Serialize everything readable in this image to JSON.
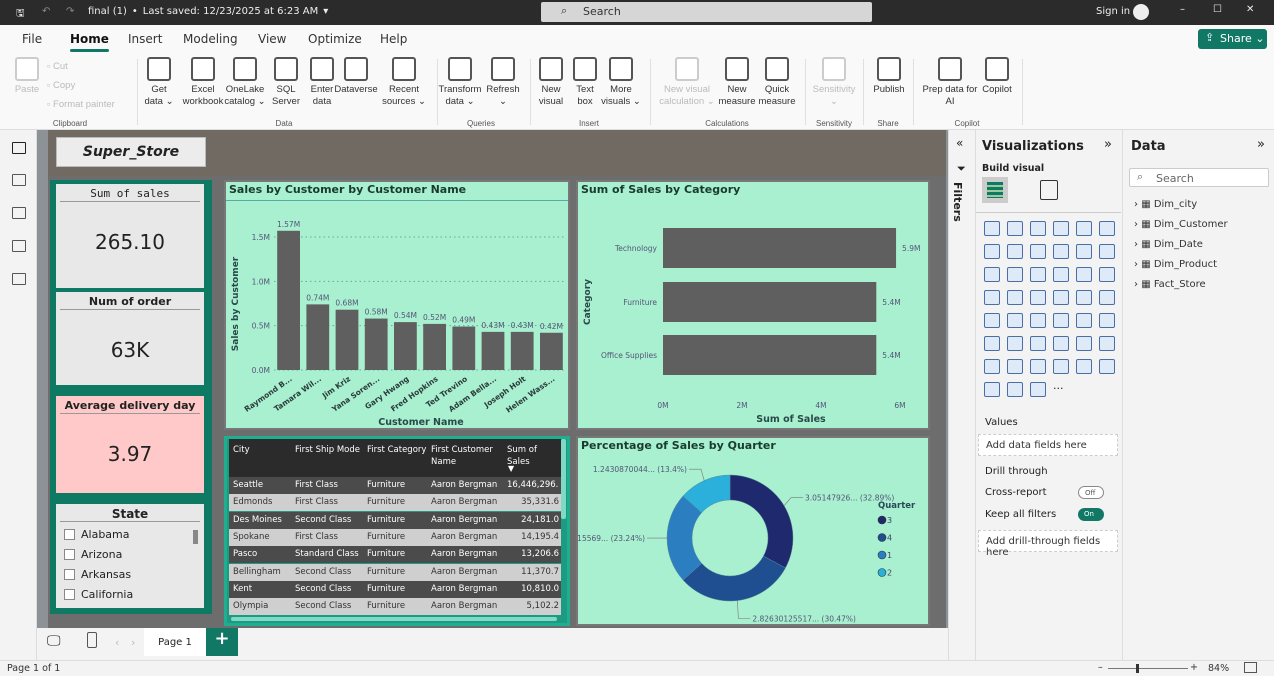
{
  "titlebar": {
    "filename": "final (1)",
    "saved": "Last saved: 12/23/2025 at 6:23 AM",
    "search": "Search",
    "signin": "Sign in"
  },
  "tabs": [
    "File",
    "Home",
    "Insert",
    "Modeling",
    "View",
    "Optimize",
    "Help"
  ],
  "active_tab": "Home",
  "share": "Share",
  "ribbon": {
    "groups": [
      {
        "label": "Clipboard",
        "buttons": [
          {
            "label": "Paste",
            "icon": "paste-icon",
            "disabled": true
          },
          {
            "label": "Cut",
            "icon": "cut-icon",
            "disabled": true
          },
          {
            "label": "Copy",
            "icon": "copy-icon",
            "disabled": true
          },
          {
            "label": "Format painter",
            "icon": "format-painter-icon",
            "disabled": true
          }
        ]
      },
      {
        "label": "Data",
        "buttons": [
          {
            "label": "Get data ⌄",
            "icon": "database-icon"
          },
          {
            "label": "Excel workbook",
            "icon": "excel-icon"
          },
          {
            "label": "OneLake catalog ⌄",
            "icon": "onelake-icon"
          },
          {
            "label": "SQL Server",
            "icon": "sql-server-icon"
          },
          {
            "label": "Enter data",
            "icon": "table-add-icon"
          },
          {
            "label": "Dataverse",
            "icon": "dataverse-icon"
          },
          {
            "label": "Recent sources ⌄",
            "icon": "recent-icon"
          }
        ]
      },
      {
        "label": "Queries",
        "buttons": [
          {
            "label": "Transform data ⌄",
            "icon": "transform-icon"
          },
          {
            "label": "Refresh ⌄",
            "icon": "refresh-icon"
          }
        ]
      },
      {
        "label": "Insert",
        "buttons": [
          {
            "label": "New visual",
            "icon": "new-visual-icon"
          },
          {
            "label": "Text box",
            "icon": "text-box-icon"
          },
          {
            "label": "More visuals ⌄",
            "icon": "more-visuals-icon"
          }
        ]
      },
      {
        "label": "Calculations",
        "buttons": [
          {
            "label": "New visual calculation ⌄",
            "icon": "visual-calc-icon",
            "disabled": true
          },
          {
            "label": "New measure",
            "icon": "calculator-icon"
          },
          {
            "label": "Quick measure",
            "icon": "quick-measure-icon"
          }
        ]
      },
      {
        "label": "Sensitivity",
        "buttons": [
          {
            "label": "Sensitivity ⌄",
            "icon": "sensitivity-icon",
            "disabled": true
          }
        ]
      },
      {
        "label": "Share",
        "buttons": [
          {
            "label": "Publish",
            "icon": "publish-icon"
          }
        ]
      },
      {
        "label": "Copilot",
        "buttons": [
          {
            "label": "Prep data for AI",
            "icon": "prep-data-icon"
          },
          {
            "label": "Copilot",
            "icon": "copilot-icon"
          }
        ]
      }
    ]
  },
  "report": {
    "logo": "Super_Store",
    "kpis": [
      {
        "title": "Sum of sales",
        "value": "265.10",
        "color": "#e8e8e8"
      },
      {
        "title": "Num of order",
        "value": "63K",
        "color": "#e8e8e8"
      },
      {
        "title": "Average delivery day",
        "value": "3.97",
        "color": "#ffc9c9"
      }
    ],
    "slicer": {
      "title": "State",
      "items": [
        "Alabama",
        "Arizona",
        "Arkansas",
        "California"
      ]
    },
    "table": {
      "columns": [
        "City",
        "First Ship Mode",
        "First Category",
        "First Customer Name",
        "Sum of Sales"
      ],
      "rows": [
        [
          "Seattle",
          "First Class",
          "Furniture",
          "Aaron Bergman",
          "16,446,296.5"
        ],
        [
          "Edmonds",
          "First Class",
          "Furniture",
          "Aaron Bergman",
          "35,331.6"
        ],
        [
          "Des Moines",
          "Second Class",
          "Furniture",
          "Aaron Bergman",
          "24,181.0"
        ],
        [
          "Spokane",
          "First Class",
          "Furniture",
          "Aaron Bergman",
          "14,195.4"
        ],
        [
          "Pasco",
          "Standard Class",
          "Furniture",
          "Aaron Bergman",
          "13,206.6"
        ],
        [
          "Bellingham",
          "Second Class",
          "Furniture",
          "Aaron Bergman",
          "11,370.7"
        ],
        [
          "Kent",
          "Second Class",
          "Furniture",
          "Aaron Bergman",
          "10,810.0"
        ],
        [
          "Olympia",
          "Second Class",
          "Furniture",
          "Aaron Bergman",
          "5,102.2"
        ]
      ]
    }
  },
  "chart_data": [
    {
      "type": "bar",
      "title": "Sales by Customer by Customer Name",
      "xlabel": "Customer Name",
      "ylabel": "Sales by Customer",
      "categories": [
        "Raymond B...",
        "Tamara Wil...",
        "Jim Kriz",
        "Yana Soren...",
        "Gary Hwang",
        "Fred Hopkins",
        "Ted Trevino",
        "Adam Bella...",
        "Joseph Holt",
        "Helen Wass..."
      ],
      "values": [
        1.57,
        0.74,
        0.68,
        0.58,
        0.54,
        0.52,
        0.49,
        0.43,
        0.43,
        0.42
      ],
      "data_labels": [
        "1.57M",
        "0.74M",
        "0.68M",
        "0.58M",
        "0.54M",
        "0.52M",
        "0.49M",
        "0.43M",
        "0.43M",
        "0.42M"
      ],
      "yticks": [
        "0.0M",
        "0.5M",
        "1.0M",
        "1.5M"
      ],
      "unit": "M",
      "ylim": [
        0,
        1.75
      ],
      "grid": true,
      "color": "#5f5f5f"
    },
    {
      "type": "bar",
      "orientation": "horizontal",
      "title": "Sum of Sales by Category",
      "xlabel": "Sum of Sales",
      "ylabel": "Category",
      "categories": [
        "Technology",
        "Furniture",
        "Office Supplies"
      ],
      "values": [
        5.9,
        5.4,
        5.4
      ],
      "data_labels": [
        "5.9M",
        "5.4M",
        "5.4M"
      ],
      "xticks": [
        "0M",
        "2M",
        "4M",
        "6M"
      ],
      "xlim": [
        0,
        6
      ],
      "color": "#5f5f5f"
    },
    {
      "type": "pie",
      "variant": "donut",
      "title": "Percentage of Sales by Quarter",
      "legend_title": "Quarter",
      "legend": "right",
      "slices": [
        {
          "name": "3",
          "label": "3.05147926... (32.89%)",
          "percent": 32.89,
          "color": "#1f2a6e"
        },
        {
          "name": "4",
          "label": "2.82630125517... (30.47%)",
          "percent": 30.47,
          "color": "#1f4e91"
        },
        {
          "name": "1",
          "label": "2.15569... (23.24%)",
          "percent": 23.24,
          "color": "#2b7fc0"
        },
        {
          "name": "2",
          "label": "1.2430870044... (13.4%)",
          "percent": 13.4,
          "color": "#2bb0dc"
        }
      ]
    }
  ],
  "visualizations": {
    "title": "Visualizations",
    "build": "Build visual",
    "values_label": "Values",
    "values_well": "Add data fields here",
    "drill": "Drill through",
    "cross": "Cross-report",
    "cross_state": "Off",
    "keep": "Keep all filters",
    "keep_state": "On",
    "drill_well": "Add drill-through fields here",
    "icons": [
      "stacked-bar",
      "stacked-column",
      "clustered-bar",
      "clustered-column",
      "100-bar",
      "100-column",
      "line",
      "area",
      "stacked-area",
      "100-area",
      "line-column",
      "line-clustered",
      "ribbon",
      "waterfall",
      "funnel",
      "scatter",
      "pie",
      "donut",
      "treemap",
      "map",
      "filled-map",
      "azure-map",
      "gauge",
      "card-new",
      "card",
      "multi-row-card",
      "kpi",
      "slicer",
      "table",
      "matrix",
      "r-visual",
      "python-visual",
      "key-influencers",
      "decomposition-tree",
      "qa",
      "narrative",
      "metrics",
      "paginated",
      "power-apps",
      "power-automate",
      "button-slicer",
      "image",
      "arcgis",
      "shape",
      "chevron",
      "more"
    ]
  },
  "filters_label": "Filters",
  "data_pane": {
    "title": "Data",
    "search": "Search",
    "tables": [
      "Dim_city",
      "Dim_Customer",
      "Dim_Date",
      "Dim_Product",
      "Fact_Store"
    ]
  },
  "pagebar": {
    "page": "Page 1"
  },
  "status": {
    "page": "Page 1 of 1",
    "zoom": "84%"
  },
  "accent": "#117865"
}
